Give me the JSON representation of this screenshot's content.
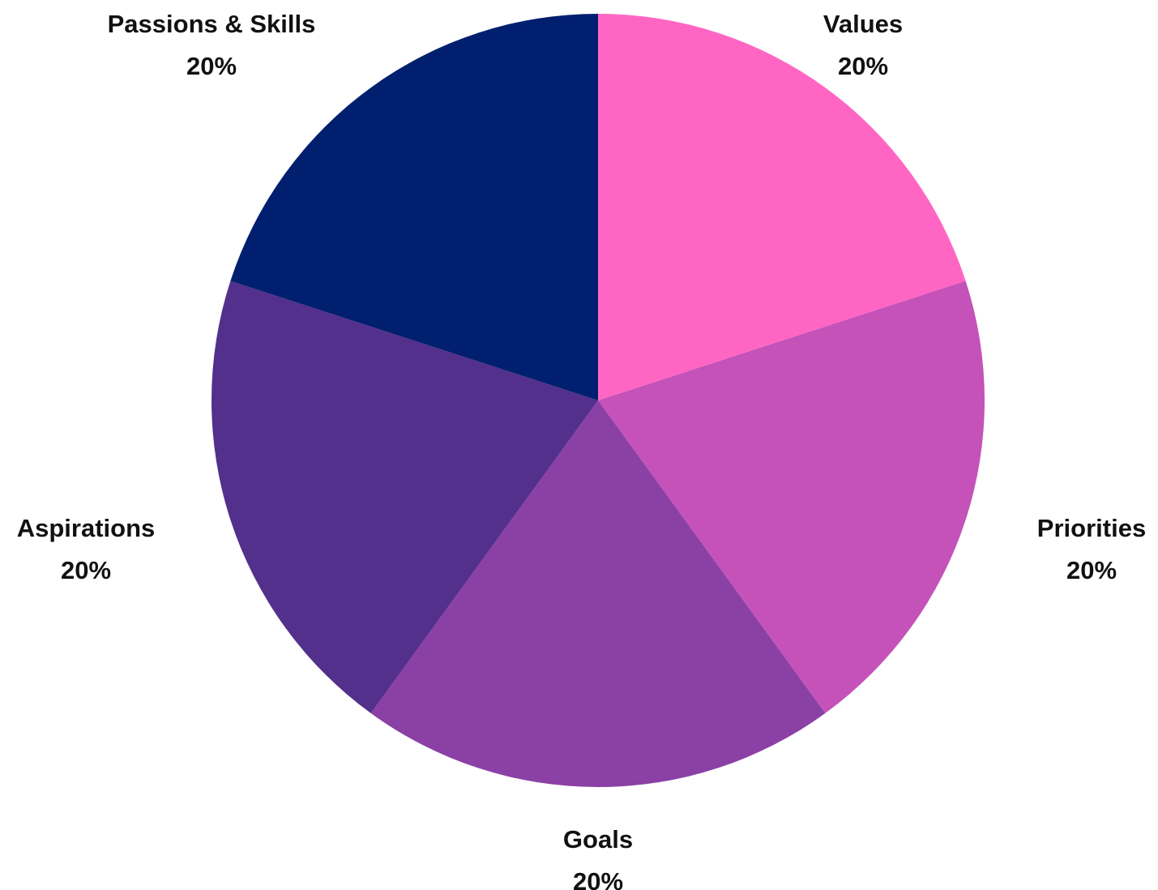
{
  "chart_data": {
    "type": "pie",
    "slices": [
      {
        "label": "Values",
        "value": 20,
        "value_label": "20%",
        "color": "#FF66C4"
      },
      {
        "label": "Priorities",
        "value": 20,
        "value_label": "20%",
        "color": "#C452B8"
      },
      {
        "label": "Goals",
        "value": 20,
        "value_label": "20%",
        "color": "#8B40A5"
      },
      {
        "label": "Aspirations",
        "value": 20,
        "value_label": "20%",
        "color": "#52308C"
      },
      {
        "label": "Passions & Skills",
        "value": 20,
        "value_label": "20%",
        "color": "#001F6E"
      }
    ],
    "start_angle": "12 o'clock",
    "direction": "clockwise",
    "legend": "none"
  }
}
